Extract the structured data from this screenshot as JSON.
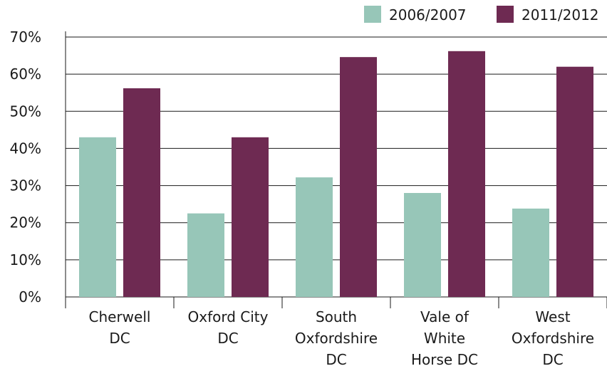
{
  "chart_data": {
    "type": "bar",
    "categories": [
      [
        "Cherwell",
        "DC"
      ],
      [
        "Oxford City",
        "DC"
      ],
      [
        "South",
        "Oxfordshire",
        "DC"
      ],
      [
        "Vale of",
        "White",
        "Horse DC"
      ],
      [
        "West",
        "Oxfordshire",
        "DC"
      ]
    ],
    "series": [
      {
        "name": "2006/2007",
        "color": "#97c6b8",
        "values": [
          43,
          22.5,
          32.2,
          28,
          23.8
        ]
      },
      {
        "name": "2011/2012",
        "color": "#6e2a52",
        "values": [
          56.2,
          43,
          64.6,
          66.2,
          62
        ]
      }
    ],
    "ylim": [
      0,
      70
    ],
    "yticks": [
      "0%",
      "10%",
      "20%",
      "30%",
      "40%",
      "50%",
      "60%",
      "70%"
    ],
    "grid": true,
    "legend_position": "top-right"
  }
}
